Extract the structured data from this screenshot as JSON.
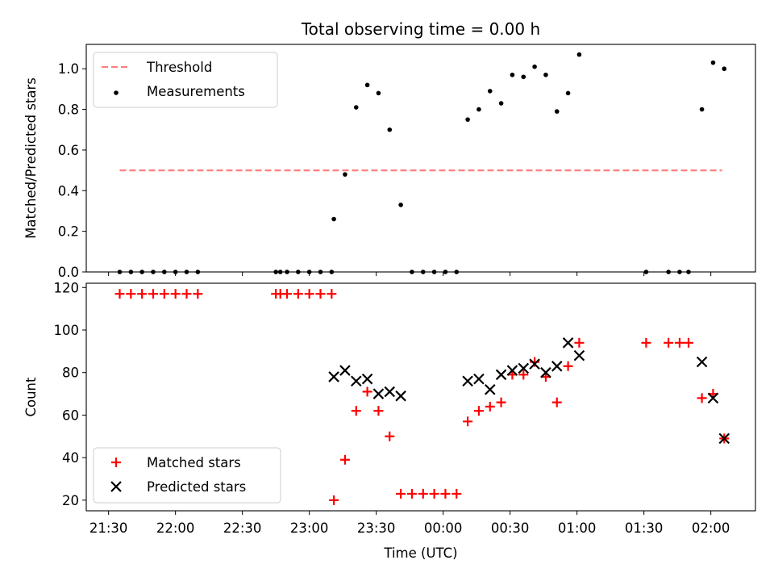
{
  "chart_data": [
    {
      "type": "scatter",
      "title": "Total observing time = 0.00 h",
      "ylabel": "Matched/Predicted stars",
      "xlabel": "",
      "xlim": [
        "21:20",
        "02:20"
      ],
      "ylim": [
        0,
        1.12
      ],
      "yticks": [
        "0.0",
        "0.2",
        "0.4",
        "0.6",
        "0.8",
        "1.0"
      ],
      "legend_position": "top-left",
      "grid": false,
      "series": [
        {
          "name": "Threshold",
          "kind": "dashed-line",
          "color": "#ff7f7f",
          "x": [
            "21:35",
            "02:05"
          ],
          "y": [
            0.5,
            0.5
          ]
        },
        {
          "name": "Measurements",
          "kind": "points",
          "color": "#000000",
          "x": [
            "21:35",
            "21:40",
            "21:45",
            "21:50",
            "21:55",
            "22:00",
            "22:05",
            "22:10",
            "22:45",
            "22:47",
            "22:50",
            "22:55",
            "23:00",
            "23:05",
            "23:10",
            "23:11",
            "23:16",
            "23:21",
            "23:26",
            "23:31",
            "23:36",
            "23:41",
            "23:46",
            "23:51",
            "23:56",
            "00:01",
            "00:06",
            "00:11",
            "00:16",
            "00:21",
            "00:26",
            "00:31",
            "00:36",
            "00:41",
            "00:46",
            "00:51",
            "00:56",
            "01:01",
            "01:31",
            "01:41",
            "01:46",
            "01:50",
            "01:56",
            "02:01",
            "02:06"
          ],
          "y": [
            0,
            0,
            0,
            0,
            0,
            0,
            0,
            0,
            0,
            0,
            0,
            0,
            0,
            0,
            0,
            0.26,
            0.48,
            0.81,
            0.92,
            0.88,
            0.7,
            0.33,
            0,
            0,
            0,
            0,
            0,
            0.75,
            0.8,
            0.89,
            0.83,
            0.97,
            0.96,
            1.01,
            0.97,
            0.79,
            0.88,
            1.07,
            0,
            0,
            0,
            0,
            0.8,
            1.03,
            1.0
          ]
        }
      ]
    },
    {
      "type": "scatter",
      "title": "",
      "ylabel": "Count",
      "xlabel": "Time (UTC)",
      "xlim": [
        "21:20",
        "02:20"
      ],
      "ylim": [
        15,
        122
      ],
      "yticks": [
        "20",
        "40",
        "60",
        "80",
        "100",
        "120"
      ],
      "xticks": [
        "21:30",
        "22:00",
        "22:30",
        "23:00",
        "23:30",
        "00:00",
        "00:30",
        "01:00",
        "01:30",
        "02:00"
      ],
      "legend_position": "bottom-left",
      "grid": false,
      "series": [
        {
          "name": "Matched stars",
          "marker": "plus",
          "color": "#ff0000",
          "x": [
            "21:35",
            "21:40",
            "21:45",
            "21:50",
            "21:55",
            "22:00",
            "22:05",
            "22:10",
            "22:45",
            "22:47",
            "22:50",
            "22:55",
            "23:00",
            "23:05",
            "23:10",
            "23:11",
            "23:16",
            "23:21",
            "23:26",
            "23:31",
            "23:36",
            "23:41",
            "23:46",
            "23:51",
            "23:56",
            "00:01",
            "00:06",
            "00:11",
            "00:16",
            "00:21",
            "00:26",
            "00:31",
            "00:36",
            "00:41",
            "00:46",
            "00:51",
            "00:56",
            "01:01",
            "01:31",
            "01:41",
            "01:46",
            "01:50",
            "01:56",
            "02:01",
            "02:06"
          ],
          "y": [
            117,
            117,
            117,
            117,
            117,
            117,
            117,
            117,
            117,
            117,
            117,
            117,
            117,
            117,
            117,
            20,
            39,
            62,
            71,
            62,
            50,
            23,
            23,
            23,
            23,
            23,
            23,
            57,
            62,
            64,
            66,
            79,
            79,
            85,
            78,
            66,
            83,
            94,
            94,
            94,
            94,
            94,
            68,
            70,
            49
          ]
        },
        {
          "name": "Predicted stars",
          "marker": "x",
          "color": "#000000",
          "x": [
            "23:11",
            "23:16",
            "23:21",
            "23:26",
            "23:31",
            "23:36",
            "23:41",
            "00:11",
            "00:16",
            "00:21",
            "00:26",
            "00:31",
            "00:36",
            "00:41",
            "00:46",
            "00:51",
            "00:56",
            "01:01",
            "01:56",
            "02:01",
            "02:06"
          ],
          "y": [
            78,
            81,
            76,
            77,
            70,
            71,
            69,
            76,
            77,
            72,
            79,
            81,
            82,
            84,
            80,
            83,
            94,
            88,
            85,
            68,
            49
          ]
        }
      ]
    }
  ]
}
